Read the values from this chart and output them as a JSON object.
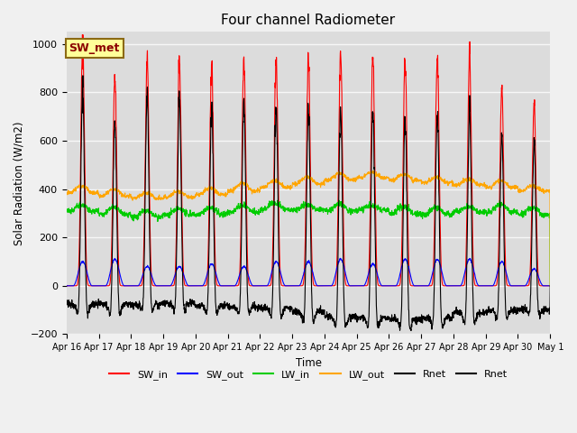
{
  "title": "Four channel Radiometer",
  "xlabel": "Time",
  "ylabel": "Solar Radiation (W/m2)",
  "ylim": [
    -200,
    1050
  ],
  "x_tick_labels": [
    "Apr 16",
    "Apr 17",
    "Apr 18",
    "Apr 19",
    "Apr 20",
    "Apr 21",
    "Apr 22",
    "Apr 23",
    "Apr 24",
    "Apr 25",
    "Apr 26",
    "Apr 27",
    "Apr 28",
    "Apr 29",
    "Apr 30",
    "May 1"
  ],
  "annotation_text": "SW_met",
  "annotation_color": "#8B0000",
  "annotation_bg": "#FFFF99",
  "background_color": "#DCDCDC",
  "fig_bg_color": "#F0F0F0",
  "series_colors": {
    "SW_in": "red",
    "SW_out": "blue",
    "LW_in": "#00CC00",
    "LW_out": "orange",
    "Rnet": "black"
  },
  "num_days": 15,
  "SW_in_peak": [
    1000,
    860,
    940,
    940,
    920,
    940,
    940,
    940,
    960,
    960,
    940,
    940,
    960,
    820,
    760
  ],
  "SW_out_peak": [
    100,
    110,
    80,
    80,
    90,
    80,
    100,
    100,
    110,
    90,
    110,
    110,
    110,
    100,
    70
  ],
  "LW_in_base": [
    310,
    295,
    285,
    295,
    295,
    305,
    315,
    315,
    310,
    315,
    300,
    295,
    305,
    305,
    295
  ],
  "LW_in_day_add": [
    25,
    30,
    25,
    25,
    28,
    28,
    28,
    22,
    28,
    18,
    28,
    28,
    22,
    32,
    28
  ],
  "LW_out_base": [
    385,
    372,
    362,
    367,
    377,
    392,
    407,
    422,
    437,
    447,
    437,
    427,
    417,
    407,
    392
  ],
  "LW_out_day_add": [
    28,
    28,
    22,
    22,
    28,
    32,
    28,
    28,
    28,
    22,
    22,
    22,
    22,
    28,
    22
  ],
  "Rnet_night": -100,
  "linewidth": 0.8
}
